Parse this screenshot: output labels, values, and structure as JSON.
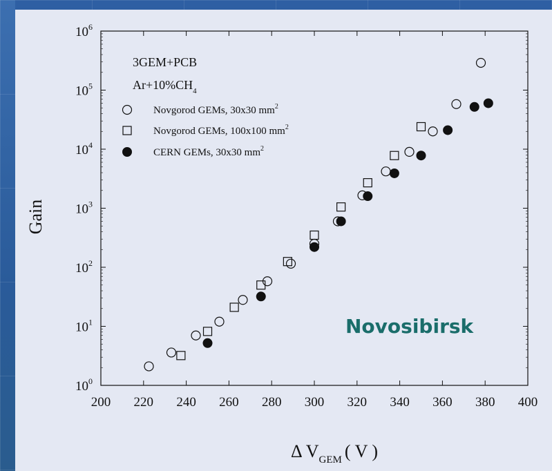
{
  "chart_data": {
    "type": "scatter",
    "title": "",
    "xlabel_main": "Δ V",
    "xlabel_sub": "GEM",
    "xlabel_unit": "( V )",
    "ylabel": "Gain",
    "xlim": [
      200,
      400
    ],
    "ylim_log10": [
      0,
      6
    ],
    "y_scale": "log",
    "x_ticks": [
      200,
      220,
      240,
      260,
      280,
      300,
      320,
      340,
      360,
      380,
      400
    ],
    "y_tick_base": "10",
    "y_tick_exponents": [
      "0",
      "1",
      "2",
      "3",
      "4",
      "5",
      "6"
    ],
    "legend_position": "top-left",
    "annotation_lines": [
      {
        "text": "3GEM+PCB"
      },
      {
        "text": "Ar+10%CH",
        "sub": "4"
      }
    ],
    "series": [
      {
        "name": "Novgorod GEMs, 30x30 mm",
        "name_sup": "2",
        "marker": "open-circle",
        "points": [
          [
            222.5,
            2.1
          ],
          [
            233,
            3.6
          ],
          [
            244.5,
            7
          ],
          [
            255.5,
            12
          ],
          [
            266.5,
            28
          ],
          [
            278,
            58
          ],
          [
            289,
            115
          ],
          [
            300,
            250
          ],
          [
            311,
            600
          ],
          [
            322.5,
            1650
          ],
          [
            333.5,
            4200
          ],
          [
            344.5,
            9000
          ],
          [
            355.5,
            20000
          ],
          [
            366.5,
            58000
          ],
          [
            378,
            290000
          ]
        ]
      },
      {
        "name": "Novgorod GEMs, 100x100 mm",
        "name_sup": "2",
        "marker": "open-square",
        "points": [
          [
            237.5,
            3.2
          ],
          [
            250,
            8.2
          ],
          [
            262.5,
            21
          ],
          [
            275,
            50
          ],
          [
            287.5,
            125
          ],
          [
            300,
            350
          ],
          [
            312.5,
            1050
          ],
          [
            325,
            2700
          ],
          [
            337.5,
            7800
          ],
          [
            350,
            24000
          ]
        ]
      },
      {
        "name": "CERN GEMs, 30x30 mm",
        "name_sup": "2",
        "marker": "filled-circle",
        "points": [
          [
            250,
            5.2
          ],
          [
            275,
            32
          ],
          [
            300,
            220
          ],
          [
            312.5,
            600
          ],
          [
            325,
            1600
          ],
          [
            337.5,
            3900
          ],
          [
            350,
            7800
          ],
          [
            362.5,
            21000
          ],
          [
            375,
            52000
          ],
          [
            381.5,
            60000
          ]
        ]
      }
    ],
    "annotations": [
      {
        "text": "Novosibirsk",
        "color": "#1a6d6a"
      }
    ]
  }
}
